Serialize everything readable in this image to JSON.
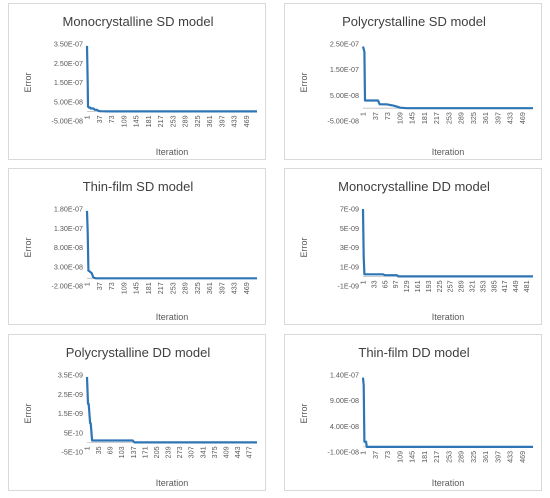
{
  "chart_data": [
    {
      "type": "line",
      "title": "Monocrystalline SD model",
      "xlabel": "Iteration",
      "ylabel": "Error",
      "color": "#2E75B6",
      "xlim": [
        1,
        500
      ],
      "ylim": [
        -5e-08,
        3.5e-07
      ],
      "yticks": [
        "3.50E-07",
        "2.50E-07",
        "1.50E-07",
        "5.00E-08",
        "-5.00E-08"
      ],
      "ytick_values": [
        3.5e-07,
        2.5e-07,
        1.5e-07,
        5e-08,
        -5e-08
      ],
      "xticks": [
        1,
        37,
        73,
        109,
        145,
        181,
        217,
        253,
        289,
        325,
        361,
        397,
        433,
        469
      ],
      "x": [
        1,
        3,
        4,
        6,
        10,
        12,
        20,
        24,
        30,
        35,
        40,
        60,
        500
      ],
      "y": [
        3.4e-07,
        1.5e-07,
        2.5e-08,
        2e-08,
        2e-08,
        1.5e-08,
        1.5e-08,
        8e-09,
        8e-09,
        2e-09,
        1e-09,
        0,
        0
      ]
    },
    {
      "type": "line",
      "title": "Polycrystalline SD model",
      "xlabel": "Iteration",
      "ylabel": "Error",
      "color": "#2E75B6",
      "xlim": [
        1,
        500
      ],
      "ylim": [
        -5e-08,
        2.5e-07
      ],
      "yticks": [
        "2.50E-07",
        "1.50E-07",
        "5.00E-08",
        "-5.00E-08"
      ],
      "ytick_values": [
        2.5e-07,
        1.5e-07,
        5e-08,
        -5e-08
      ],
      "xticks": [
        1,
        37,
        73,
        109,
        145,
        181,
        217,
        253,
        289,
        325,
        361,
        397,
        433,
        469
      ],
      "x": [
        1,
        5,
        7,
        45,
        50,
        70,
        90,
        100,
        110,
        130,
        500
      ],
      "y": [
        2.4e-07,
        2.2e-07,
        3e-08,
        3e-08,
        1.5e-08,
        1.5e-08,
        1e-08,
        6e-09,
        2e-09,
        0,
        0
      ]
    },
    {
      "type": "line",
      "title": "Thin-film SD model",
      "xlabel": "Iteration",
      "ylabel": "Error",
      "color": "#2E75B6",
      "xlim": [
        1,
        500
      ],
      "ylim": [
        -2e-08,
        1.8e-07
      ],
      "yticks": [
        "1.80E-07",
        "1.30E-07",
        "8.00E-08",
        "3.00E-08",
        "-2.00E-08"
      ],
      "ytick_values": [
        1.8e-07,
        1.3e-07,
        8e-08,
        3e-08,
        -2e-08
      ],
      "xticks": [
        1,
        37,
        73,
        109,
        145,
        181,
        217,
        253,
        289,
        325,
        361,
        397,
        433,
        469
      ],
      "x": [
        1,
        3,
        5,
        9,
        15,
        17,
        19,
        22,
        28,
        500
      ],
      "y": [
        1.75e-07,
        1.2e-07,
        2e-08,
        1.8e-08,
        1.3e-08,
        8e-09,
        3e-09,
        1e-09,
        0,
        0
      ]
    },
    {
      "type": "line",
      "title": "Monocrystalline DD model",
      "xlabel": "Iteration",
      "ylabel": "Error",
      "color": "#2E75B6",
      "xlim": [
        1,
        500
      ],
      "ylim": [
        -1e-09,
        7e-09
      ],
      "yticks": [
        "7E-09",
        "5E-09",
        "3E-09",
        "1E-09",
        "-1E-09"
      ],
      "ytick_values": [
        7e-09,
        5e-09,
        3e-09,
        1e-09,
        -1e-09
      ],
      "xticks": [
        1,
        33,
        65,
        97,
        129,
        161,
        193,
        225,
        257,
        289,
        321,
        353,
        385,
        417,
        449,
        481
      ],
      "x": [
        1,
        3,
        5,
        60,
        65,
        100,
        105,
        500
      ],
      "y": [
        7e-09,
        2e-09,
        2.2e-10,
        2.2e-10,
        1.2e-10,
        1.2e-10,
        0,
        0
      ]
    },
    {
      "type": "line",
      "title": "Polycrystalline DD model",
      "xlabel": "Iteration",
      "ylabel": "Error",
      "color": "#2E75B6",
      "xlim": [
        1,
        500
      ],
      "ylim": [
        -5e-10,
        3.5e-09
      ],
      "yticks": [
        "3.5E-09",
        "2.5E-09",
        "1.5E-09",
        "5E-10",
        "-5E-10"
      ],
      "ytick_values": [
        3.5e-09,
        2.5e-09,
        1.5e-09,
        5e-10,
        -5e-10
      ],
      "xticks": [
        1,
        35,
        69,
        103,
        137,
        171,
        205,
        239,
        273,
        307,
        341,
        375,
        409,
        443,
        477
      ],
      "x": [
        1,
        4,
        6,
        10,
        12,
        16,
        18,
        135,
        140,
        500
      ],
      "y": [
        3.4e-09,
        2e-09,
        2e-09,
        1e-09,
        1e-09,
        1e-10,
        1e-10,
        1e-10,
        0,
        0
      ]
    },
    {
      "type": "line",
      "title": "Thin-film DD model",
      "xlabel": "Iteration",
      "ylabel": "Error",
      "color": "#2E75B6",
      "xlim": [
        1,
        500
      ],
      "ylim": [
        -1e-08,
        1.4e-07
      ],
      "yticks": [
        "1.40E-07",
        "9.00E-08",
        "4.00E-08",
        "-1.00E-08"
      ],
      "ytick_values": [
        1.4e-07,
        9e-08,
        4e-08,
        -1e-08
      ],
      "xticks": [
        1,
        37,
        73,
        109,
        145,
        181,
        217,
        253,
        289,
        325,
        361,
        397,
        433,
        469
      ],
      "x": [
        1,
        3,
        5,
        10,
        12,
        500
      ],
      "y": [
        1.35e-07,
        1.2e-07,
        1e-08,
        1e-08,
        0,
        0
      ]
    }
  ]
}
